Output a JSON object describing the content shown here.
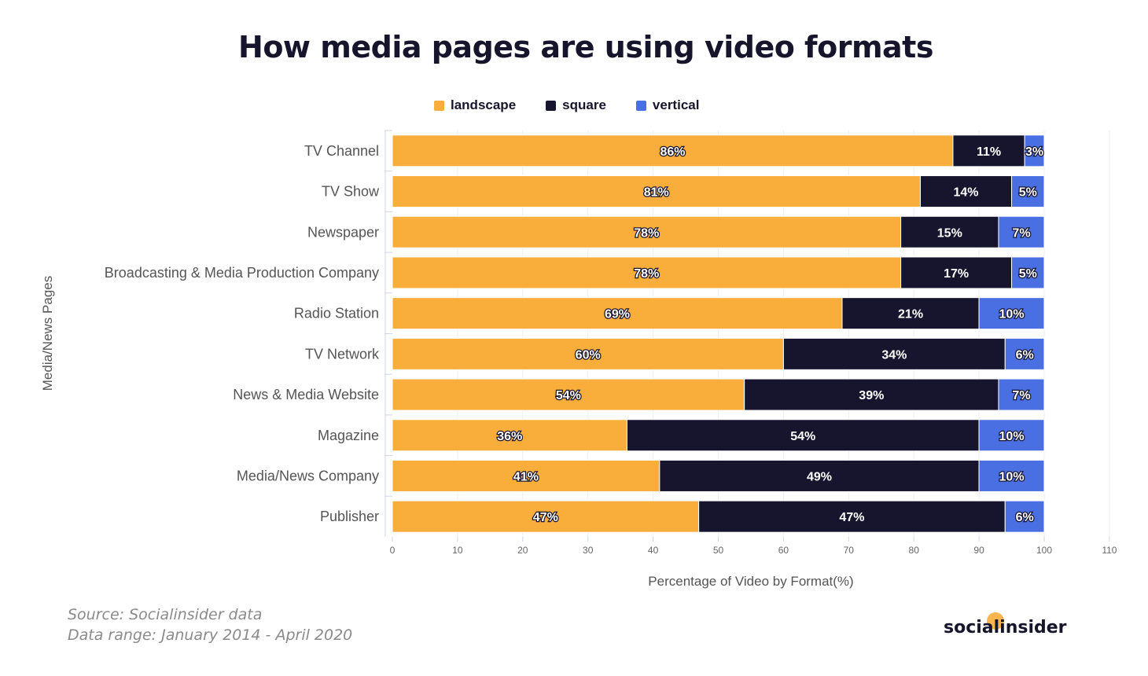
{
  "chart_data": {
    "type": "bar",
    "orientation": "horizontal-stacked",
    "title": "How media pages are using video formats",
    "xlabel": "Percentage of Video by Format(%)",
    "ylabel": "Media/News Pages",
    "xlim": [
      0,
      110
    ],
    "xticks": [
      0,
      10,
      20,
      30,
      40,
      50,
      60,
      70,
      80,
      90,
      100,
      110
    ],
    "legend_position": "top",
    "categories": [
      "TV Channel",
      "TV Show",
      "Newspaper",
      "Broadcasting & Media Production Company",
      "Radio Station",
      "TV Network",
      "News & Media Website",
      "Magazine",
      "Media/News Company",
      "Publisher"
    ],
    "series": [
      {
        "name": "landscape",
        "color": "#F9AD3B",
        "values": [
          86,
          81,
          78,
          78,
          69,
          60,
          54,
          36,
          41,
          47
        ]
      },
      {
        "name": "square",
        "color": "#17152E",
        "values": [
          11,
          14,
          15,
          17,
          21,
          34,
          39,
          54,
          49,
          47
        ]
      },
      {
        "name": "vertical",
        "color": "#4A6FE3",
        "values": [
          3,
          5,
          7,
          5,
          10,
          6,
          7,
          10,
          10,
          6
        ]
      }
    ]
  },
  "footer": {
    "source": "Source: Socialinsider data",
    "range": "Data range: January 2014 - April 2020",
    "logo": "socialinsider"
  }
}
